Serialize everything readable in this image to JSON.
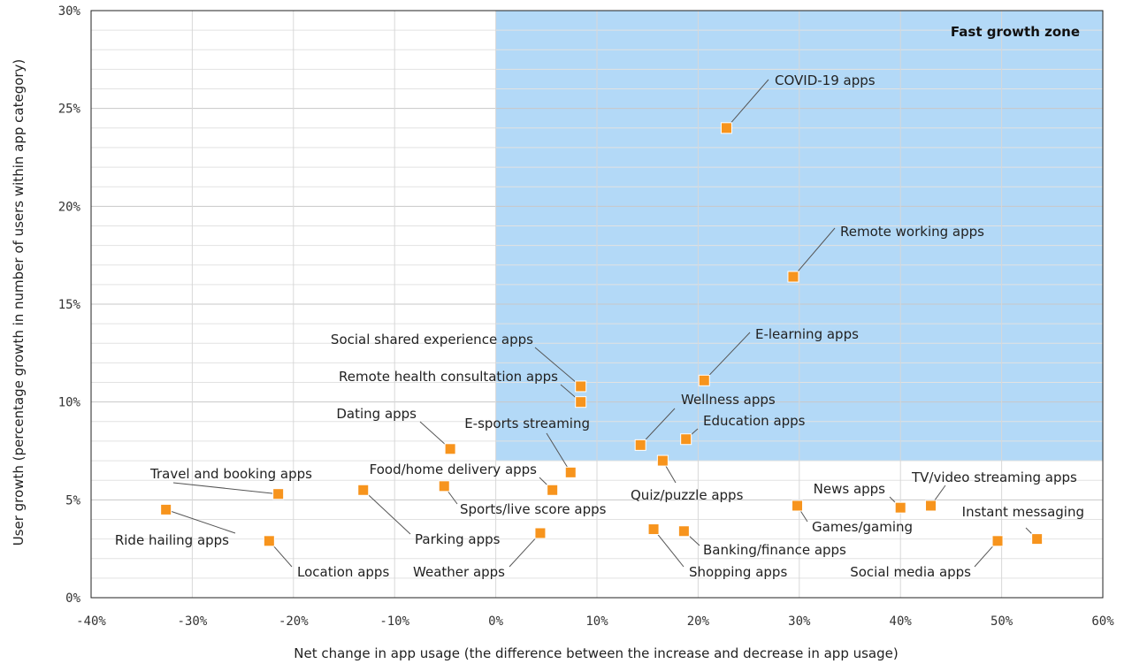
{
  "chart_data": {
    "type": "scatter",
    "title": "",
    "xlabel": "Net change in app usage (the difference between the increase and decrease in app usage)",
    "ylabel": "User growth (percentage growth in number of users within app category)",
    "xlim": [
      -40,
      60
    ],
    "ylim": [
      0,
      30
    ],
    "x_ticks": [
      -40,
      -30,
      -20,
      -10,
      0,
      10,
      20,
      30,
      40,
      50,
      60
    ],
    "x_tick_labels": [
      "-40%",
      "-30%",
      "-20%",
      "-10%",
      "0%",
      "10%",
      "20%",
      "30%",
      "40%",
      "50%",
      "60%"
    ],
    "y_ticks": [
      0,
      5,
      10,
      15,
      20,
      25,
      30
    ],
    "y_tick_labels": [
      "0%",
      "5%",
      "10%",
      "15%",
      "20%",
      "25%",
      "30%"
    ],
    "grid": true,
    "marker_color": "#F7941D",
    "zone": {
      "label": "Fast growth zone",
      "x_min": 0,
      "x_max": 60,
      "y_min": 7,
      "y_max": 30,
      "color": "#B3D9F7"
    },
    "points": [
      {
        "label": "COVID-19 apps",
        "x": 22.8,
        "y": 24.0
      },
      {
        "label": "Remote working apps",
        "x": 29.4,
        "y": 16.4
      },
      {
        "label": "Social shared experience apps",
        "x": 8.4,
        "y": 10.8
      },
      {
        "label": "Remote health consultation apps",
        "x": 8.4,
        "y": 10.0
      },
      {
        "label": "E-learning apps",
        "x": 20.6,
        "y": 11.1
      },
      {
        "label": "Dating apps",
        "x": -4.5,
        "y": 7.6
      },
      {
        "label": "E-sports streaming",
        "x": 7.4,
        "y": 6.4
      },
      {
        "label": "Wellness apps",
        "x": 14.3,
        "y": 7.8
      },
      {
        "label": "Education apps",
        "x": 18.8,
        "y": 8.1
      },
      {
        "label": "Quiz/puzzle apps",
        "x": 16.5,
        "y": 7.0
      },
      {
        "label": "Food/home delivery apps",
        "x": 5.6,
        "y": 5.5
      },
      {
        "label": "Sports/live score apps",
        "x": -5.1,
        "y": 5.7
      },
      {
        "label": "Travel and booking apps",
        "x": -21.5,
        "y": 5.3
      },
      {
        "label": "Ride hailing apps",
        "x": -32.6,
        "y": 4.5
      },
      {
        "label": "Parking apps",
        "x": -13.1,
        "y": 5.5
      },
      {
        "label": "Location apps",
        "x": -22.4,
        "y": 2.9
      },
      {
        "label": "Weather apps",
        "x": 4.4,
        "y": 3.3
      },
      {
        "label": "Shopping apps",
        "x": 15.6,
        "y": 3.5
      },
      {
        "label": "Banking/finance apps",
        "x": 18.6,
        "y": 3.4
      },
      {
        "label": "News apps",
        "x": 40.0,
        "y": 4.6
      },
      {
        "label": "Games/gaming",
        "x": 29.8,
        "y": 4.7
      },
      {
        "label": "TV/video streaming apps",
        "x": 43.0,
        "y": 4.7
      },
      {
        "label": "Instant messaging",
        "x": 53.5,
        "y": 3.0
      },
      {
        "label": "Social media apps",
        "x": 49.6,
        "y": 2.9
      }
    ]
  }
}
